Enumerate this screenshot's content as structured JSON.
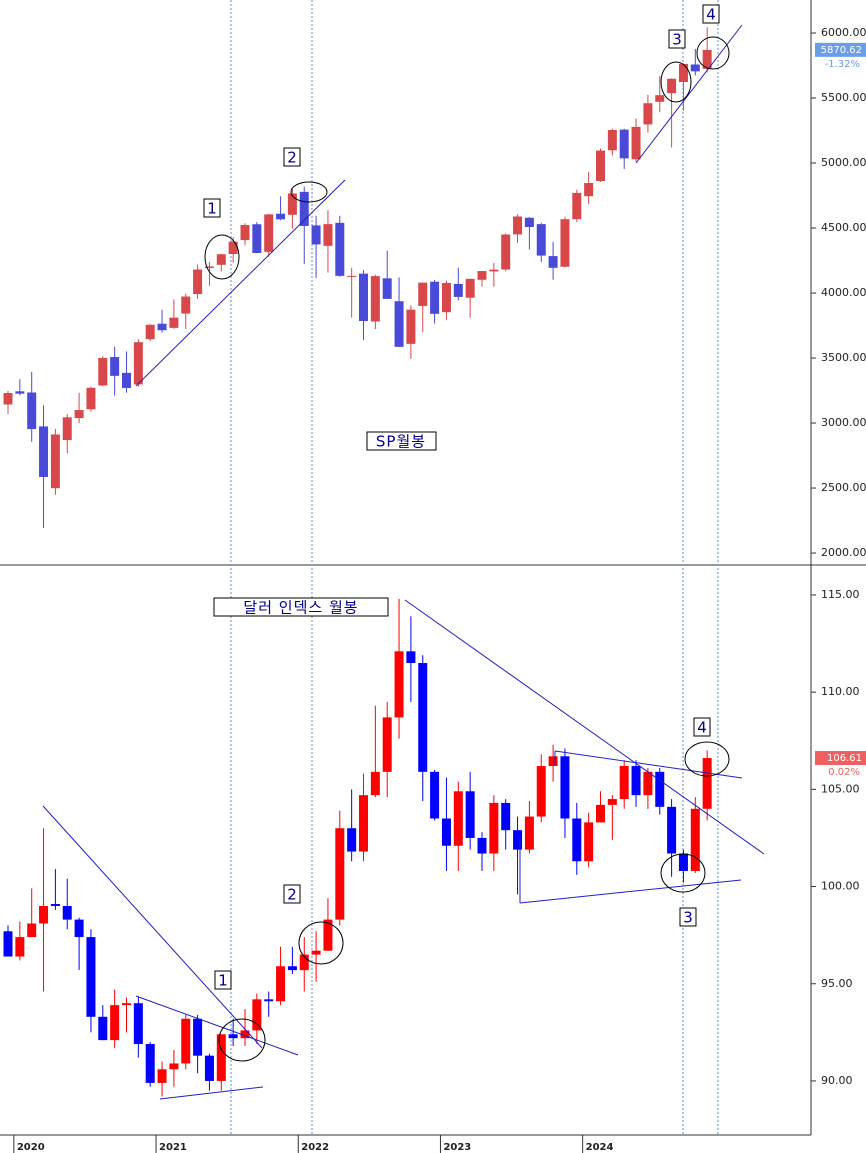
{
  "chart_data": [
    {
      "type": "candlestick",
      "title": "SP월봉",
      "open": [
        3143,
        3244,
        3235,
        2974,
        2499,
        2869,
        3038,
        3106,
        3289,
        3508,
        3386,
        3297,
        3645,
        3764,
        3732,
        3842,
        3992,
        4193,
        4217,
        4300,
        4407,
        4529,
        4317,
        4610,
        4602,
        4778,
        4520,
        4363,
        4540,
        4131,
        4149,
        3781,
        4113,
        3937,
        3609,
        3901,
        4087,
        3853,
        4070,
        3964,
        4102,
        4166,
        4181,
        4451,
        4579,
        4530,
        4284,
        4202,
        4568,
        4745,
        4862,
        5098,
        5257,
        5029,
        5297,
        5471,
        5537,
        5623,
        5758,
        5724
      ],
      "high": [
        3247,
        3337,
        3394,
        3136,
        2955,
        3068,
        3233,
        3280,
        3514,
        3588,
        3550,
        3646,
        3760,
        3871,
        3950,
        3995,
        4219,
        4238,
        4302,
        4430,
        4537,
        4546,
        4608,
        4744,
        4808,
        4819,
        4595,
        4637,
        4594,
        4194,
        4177,
        4141,
        4325,
        4120,
        3906,
        4080,
        4101,
        4095,
        4195,
        4110,
        4170,
        4231,
        4458,
        4607,
        4584,
        4541,
        4394,
        4587,
        4794,
        4932,
        5111,
        5265,
        5264,
        5342,
        5524,
        5670,
        5651,
        5767,
        5878,
        6045
      ],
      "low": [
        3070,
        3214,
        2855,
        2192,
        2448,
        2767,
        2999,
        3088,
        3283,
        3210,
        3234,
        3280,
        3633,
        3695,
        3725,
        3723,
        3955,
        4056,
        4165,
        4233,
        4368,
        4306,
        4279,
        4560,
        4495,
        4223,
        4115,
        4157,
        4124,
        3811,
        3637,
        3722,
        3955,
        3585,
        3492,
        3698,
        3765,
        3795,
        3943,
        3809,
        4049,
        4048,
        4167,
        4385,
        4335,
        4238,
        4103,
        4197,
        4546,
        4683,
        4854,
        5057,
        4954,
        5011,
        5234,
        5391,
        5120,
        5403,
        5674,
        5697
      ],
      "close": [
        3231,
        3226,
        2954,
        2585,
        2912,
        3044,
        3100,
        3271,
        3500,
        3363,
        3270,
        3622,
        3756,
        3714,
        3811,
        3973,
        4181,
        4204,
        4298,
        4395,
        4523,
        4308,
        4605,
        4567,
        4766,
        4516,
        4374,
        4530,
        4132,
        4132,
        3785,
        4130,
        3955,
        3586,
        3872,
        4080,
        3840,
        4077,
        3970,
        4109,
        4169,
        4180,
        4450,
        4589,
        4508,
        4288,
        4194,
        4568,
        4770,
        4846,
        5096,
        5254,
        5036,
        5278,
        5460,
        5522,
        5648,
        5762,
        5705,
        5870
      ],
      "up_color": "#d8484a",
      "down_color": "#4a4ad8",
      "ylim": [
        1908,
        6254
      ],
      "yticks": [
        {
          "value": 2000,
          "label": "2000.00"
        },
        {
          "value": 2500,
          "label": "2500.00"
        },
        {
          "value": 3000,
          "label": "3000.00"
        },
        {
          "value": 3500,
          "label": "3500.00"
        },
        {
          "value": 4000,
          "label": "4000.00"
        },
        {
          "value": 4500,
          "label": "4500.00"
        },
        {
          "value": 5000,
          "label": "5000.00"
        },
        {
          "value": 5500,
          "label": "5500.00"
        },
        {
          "value": 6000,
          "label": "6000.00"
        }
      ],
      "last_price": 5870.62,
      "change_label": "-1.32%",
      "last_color": "#6a9ee6",
      "markers": [
        "1",
        "2",
        "3",
        "4"
      ]
    },
    {
      "type": "candlestick",
      "title": "달러 인덱스 월봉",
      "categories": [
        null,
        "2020",
        null,
        null,
        null,
        null,
        null,
        null,
        null,
        null,
        null,
        null,
        null,
        "2021",
        null,
        null,
        null,
        null,
        null,
        null,
        null,
        null,
        null,
        null,
        null,
        "2022",
        null,
        null,
        null,
        null,
        null,
        null,
        null,
        null,
        null,
        null,
        null,
        "2023",
        null,
        null,
        null,
        null,
        null,
        null,
        null,
        null,
        null,
        null,
        null,
        "2024",
        null,
        null,
        null,
        null,
        null,
        null,
        null,
        null,
        null,
        null
      ],
      "open": [
        97.7,
        96.4,
        97.4,
        98.1,
        99.1,
        99.0,
        98.3,
        97.4,
        93.3,
        92.1,
        93.9,
        94.0,
        91.9,
        89.9,
        90.6,
        90.9,
        93.2,
        91.3,
        90.0,
        92.4,
        92.2,
        92.6,
        94.2,
        94.1,
        95.9,
        95.7,
        96.5,
        96.7,
        98.3,
        103.0,
        101.8,
        104.7,
        105.9,
        108.7,
        112.1,
        111.5,
        105.9,
        103.5,
        102.1,
        104.9,
        102.5,
        101.7,
        104.3,
        102.9,
        101.9,
        103.6,
        106.2,
        106.7,
        103.5,
        101.3,
        103.3,
        104.2,
        104.5,
        106.2,
        104.7,
        105.9,
        104.1,
        101.7,
        100.8,
        104.0
      ],
      "high": [
        98.0,
        98.2,
        99.9,
        103.0,
        100.9,
        100.4,
        98.4,
        97.8,
        93.9,
        94.7,
        94.3,
        94.3,
        92.0,
        91.0,
        91.6,
        93.4,
        93.4,
        91.4,
        92.4,
        93.2,
        93.7,
        94.5,
        94.6,
        96.9,
        96.9,
        97.4,
        97.7,
        99.4,
        103.9,
        105.0,
        105.8,
        109.3,
        109.5,
        114.8,
        113.9,
        111.9,
        106.0,
        105.6,
        105.4,
        105.9,
        102.8,
        104.7,
        104.5,
        103.6,
        104.4,
        106.8,
        107.3,
        107.1,
        104.3,
        103.8,
        104.9,
        104.7,
        106.5,
        106.5,
        106.1,
        106.1,
        104.5,
        101.9,
        104.6,
        107.0
      ],
      "low": [
        96.4,
        96.2,
        97.4,
        94.6,
        98.8,
        97.8,
        95.7,
        92.5,
        92.1,
        91.7,
        92.5,
        91.2,
        89.7,
        89.2,
        89.7,
        90.6,
        90.4,
        89.5,
        89.5,
        91.8,
        91.8,
        91.9,
        93.3,
        93.9,
        95.5,
        94.6,
        95.1,
        96.7,
        98.0,
        101.3,
        101.3,
        104.6,
        104.6,
        107.6,
        109.5,
        104.4,
        103.4,
        100.8,
        100.8,
        101.9,
        100.8,
        100.8,
        101.9,
        99.6,
        101.7,
        103.3,
        105.4,
        102.5,
        100.6,
        101.0,
        103.3,
        102.4,
        104.0,
        104.1,
        104.0,
        103.7,
        100.5,
        100.2,
        100.7,
        103.4
      ],
      "close": [
        96.4,
        97.4,
        98.1,
        99.0,
        99.0,
        98.3,
        97.4,
        93.3,
        92.1,
        93.9,
        94.0,
        91.9,
        89.9,
        90.6,
        90.9,
        93.2,
        91.3,
        90.0,
        92.4,
        92.2,
        92.6,
        94.2,
        94.1,
        95.9,
        95.7,
        96.5,
        96.7,
        98.3,
        103.0,
        101.8,
        104.7,
        105.9,
        108.7,
        112.1,
        111.5,
        105.9,
        103.5,
        102.1,
        104.9,
        102.5,
        101.7,
        104.3,
        102.9,
        101.9,
        103.6,
        106.2,
        106.7,
        103.5,
        101.3,
        103.3,
        104.2,
        104.5,
        106.2,
        104.7,
        105.9,
        104.1,
        101.7,
        100.8,
        104.0,
        106.61
      ],
      "up_color": "#ff0000",
      "down_color": "#0000ff",
      "ylim": [
        87.22,
        116.54
      ],
      "yticks": [
        {
          "value": 90,
          "label": "90.00"
        },
        {
          "value": 95,
          "label": "95.00"
        },
        {
          "value": 100,
          "label": "100.00"
        },
        {
          "value": 105,
          "label": "105.00"
        },
        {
          "value": 110,
          "label": "110.00"
        },
        {
          "value": 115,
          "label": "115.00"
        }
      ],
      "last_price": 106.61,
      "change_label": "0.02%",
      "last_color": "#f06060",
      "markers": [
        "1",
        "2",
        "3",
        "4"
      ]
    }
  ]
}
